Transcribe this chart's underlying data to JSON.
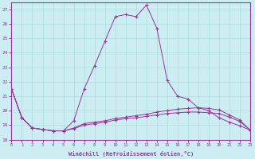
{
  "xlabel": "Windchill (Refroidissement éolien,°C)",
  "bg_color": "#cceef2",
  "grid_color": "#aadddd",
  "line_color": "#993399",
  "xlim": [
    0,
    23
  ],
  "ylim": [
    18,
    27.5
  ],
  "yticks": [
    18,
    19,
    20,
    21,
    22,
    23,
    24,
    25,
    26,
    27
  ],
  "xticks": [
    0,
    1,
    2,
    3,
    4,
    5,
    6,
    7,
    8,
    9,
    10,
    11,
    12,
    13,
    14,
    15,
    16,
    17,
    18,
    19,
    20,
    21,
    22,
    23
  ],
  "series1": [
    21.5,
    19.5,
    18.8,
    18.7,
    18.6,
    18.6,
    19.3,
    21.5,
    23.1,
    24.8,
    26.5,
    26.65,
    26.5,
    27.3,
    25.7,
    22.1,
    21.0,
    20.8,
    20.2,
    20.0,
    19.5,
    19.2,
    18.95,
    18.65
  ],
  "series2": [
    21.5,
    19.5,
    18.8,
    18.7,
    18.6,
    18.6,
    18.75,
    19.0,
    19.1,
    19.2,
    19.35,
    19.45,
    19.5,
    19.6,
    19.7,
    19.8,
    19.85,
    19.9,
    19.9,
    19.85,
    19.8,
    19.55,
    19.25,
    18.65
  ],
  "series3": [
    21.5,
    19.5,
    18.8,
    18.7,
    18.6,
    18.6,
    18.8,
    19.1,
    19.2,
    19.3,
    19.45,
    19.55,
    19.65,
    19.75,
    19.9,
    20.0,
    20.1,
    20.15,
    20.2,
    20.15,
    20.05,
    19.7,
    19.35,
    18.65
  ]
}
